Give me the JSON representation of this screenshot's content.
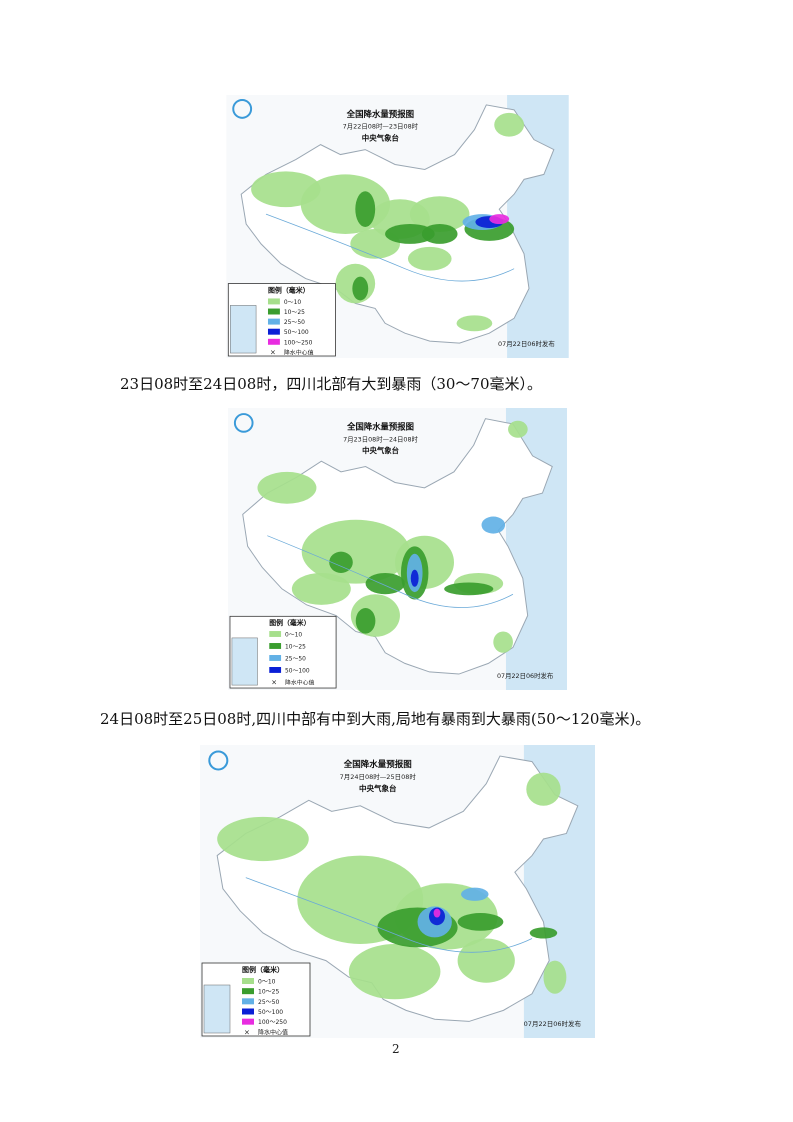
{
  "maps": [
    {
      "title": "全国降水量预报图",
      "period": "7月22日08时—23日08时",
      "agency": "中央气象台",
      "legend_title": "图例（毫米）",
      "legend": [
        {
          "label": "0～10",
          "color": "#a6df8c"
        },
        {
          "label": "10～25",
          "color": "#3a9d2e"
        },
        {
          "label": "25～50",
          "color": "#62b1e6"
        },
        {
          "label": "50～100",
          "color": "#0a1fd6"
        },
        {
          "label": "100～250",
          "color": "#e82ce0"
        }
      ],
      "marker_label": "降水中心值",
      "issued": "07月22日06时发布"
    },
    {
      "title": "全国降水量预报图",
      "period": "7月23日08时—24日08时",
      "agency": "中央气象台",
      "legend_title": "图例（毫米）",
      "legend": [
        {
          "label": "0～10",
          "color": "#a6df8c"
        },
        {
          "label": "10～25",
          "color": "#3a9d2e"
        },
        {
          "label": "25～50",
          "color": "#62b1e6"
        },
        {
          "label": "50～100",
          "color": "#0a1fd6"
        }
      ],
      "marker_label": "降水中心值",
      "issued": "07月22日06时发布"
    },
    {
      "title": "全国降水量预报图",
      "period": "7月24日08时—25日08时",
      "agency": "中央气象台",
      "legend_title": "图例（毫米）",
      "legend": [
        {
          "label": "0～10",
          "color": "#a6df8c"
        },
        {
          "label": "10～25",
          "color": "#3a9d2e"
        },
        {
          "label": "25～50",
          "color": "#62b1e6"
        },
        {
          "label": "50～100",
          "color": "#0a1fd6"
        },
        {
          "label": "100～250",
          "color": "#e82ce0"
        }
      ],
      "marker_label": "降水中心值",
      "issued": "07月22日06时发布"
    }
  ],
  "captions": [
    "23日08时至24日08时，四川北部有大到暴雨（30～70毫米）。",
    "24日08时至25日08时,四川中部有中到大雨,局地有暴雨到大暴雨(50～120毫米)。"
  ],
  "page_number": "2"
}
